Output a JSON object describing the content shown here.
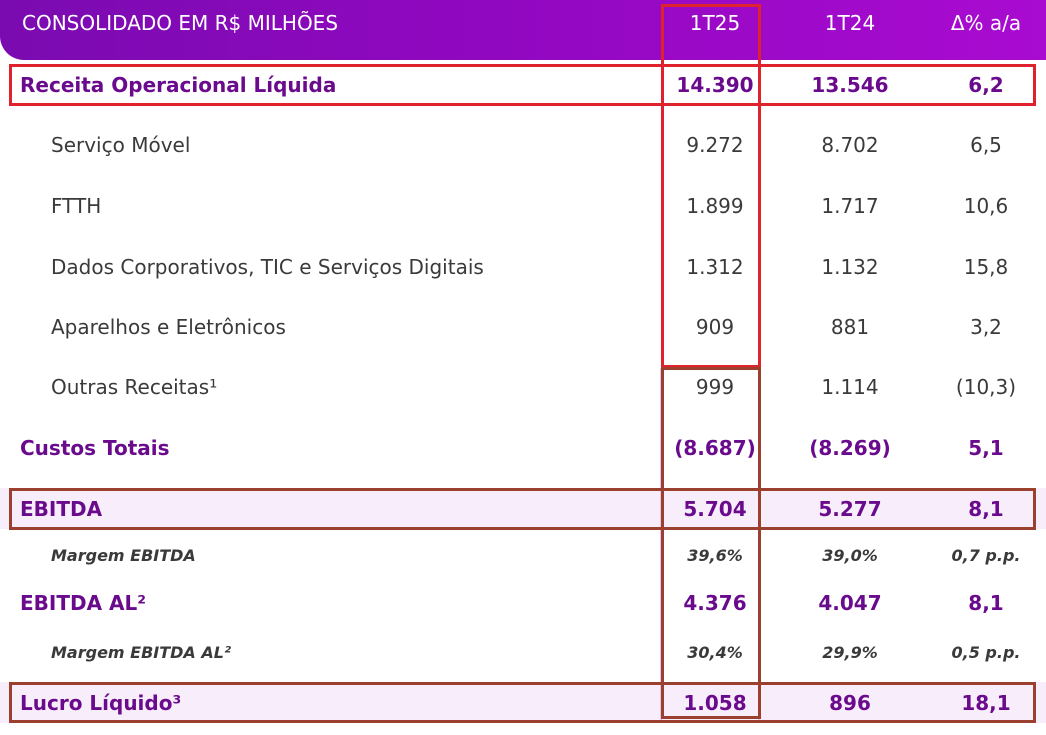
{
  "header": {
    "title": "CONSOLIDADO EM R$ MILHÕES",
    "col1": "1T25",
    "col2": "1T24",
    "col3": "Δ% a/a"
  },
  "rows": [
    {
      "label": "Receita Operacional Líquida",
      "v1": "14.390",
      "v2": "13.546",
      "v3": "6,2"
    },
    {
      "label": "Serviço Móvel",
      "v1": "9.272",
      "v2": "8.702",
      "v3": "6,5"
    },
    {
      "label": "FTTH",
      "v1": "1.899",
      "v2": "1.717",
      "v3": "10,6"
    },
    {
      "label": "Dados Corporativos, TIC e Serviços Digitais",
      "v1": "1.312",
      "v2": "1.132",
      "v3": "15,8"
    },
    {
      "label": "Aparelhos e Eletrônicos",
      "v1": "909",
      "v2": "881",
      "v3": "3,2"
    },
    {
      "label": "Outras Receitas¹",
      "v1": "999",
      "v2": "1.114",
      "v3": "(10,3)"
    },
    {
      "label": "Custos Totais",
      "v1": "(8.687)",
      "v2": "(8.269)",
      "v3": "5,1"
    },
    {
      "label": "EBITDA",
      "v1": "5.704",
      "v2": "5.277",
      "v3": "8,1"
    },
    {
      "label": "Margem EBITDA",
      "v1": "39,6%",
      "v2": "39,0%",
      "v3": "0,7 p.p."
    },
    {
      "label": "EBITDA AL²",
      "v1": "4.376",
      "v2": "4.047",
      "v3": "8,1"
    },
    {
      "label": "Margem EBITDA AL²",
      "v1": "30,4%",
      "v2": "29,9%",
      "v3": "0,5 p.p."
    },
    {
      "label": "Lucro Líquido³",
      "v1": "1.058",
      "v2": "896",
      "v3": "18,1"
    }
  ]
}
